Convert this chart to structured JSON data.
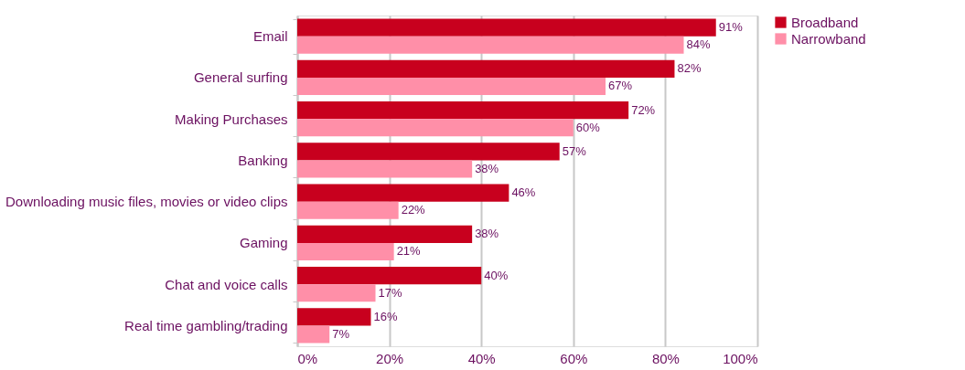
{
  "chart_data": {
    "type": "bar",
    "orientation": "horizontal",
    "categories": [
      "Email",
      "General surfing",
      "Making Purchases",
      "Banking",
      "Downloading music files, movies or video clips",
      "Gaming",
      "Chat and voice calls",
      "Real time gambling/trading"
    ],
    "series": [
      {
        "name": "Broadband",
        "color": "#c8001e",
        "values": [
          91,
          82,
          72,
          57,
          46,
          38,
          40,
          16
        ],
        "value_labels": [
          "91%",
          "82%",
          "72%",
          "57%",
          "46%",
          "38%",
          "40%",
          "16%"
        ]
      },
      {
        "name": "Narrowband",
        "color": "#ff8fa8",
        "values": [
          84,
          67,
          60,
          38,
          22,
          21,
          17,
          7
        ],
        "value_labels": [
          "84%",
          "67%",
          "60%",
          "38%",
          "22%",
          "21%",
          "17%",
          "7%"
        ]
      }
    ],
    "xlim": [
      0,
      100
    ],
    "xticks": [
      {
        "value": 0,
        "label": "0%"
      },
      {
        "value": 20,
        "label": "20%"
      },
      {
        "value": 40,
        "label": "40%"
      },
      {
        "value": 60,
        "label": "60%"
      },
      {
        "value": 80,
        "label": "80%"
      },
      {
        "value": 100,
        "label": "100%"
      }
    ],
    "grid": "x",
    "legend": "right"
  }
}
